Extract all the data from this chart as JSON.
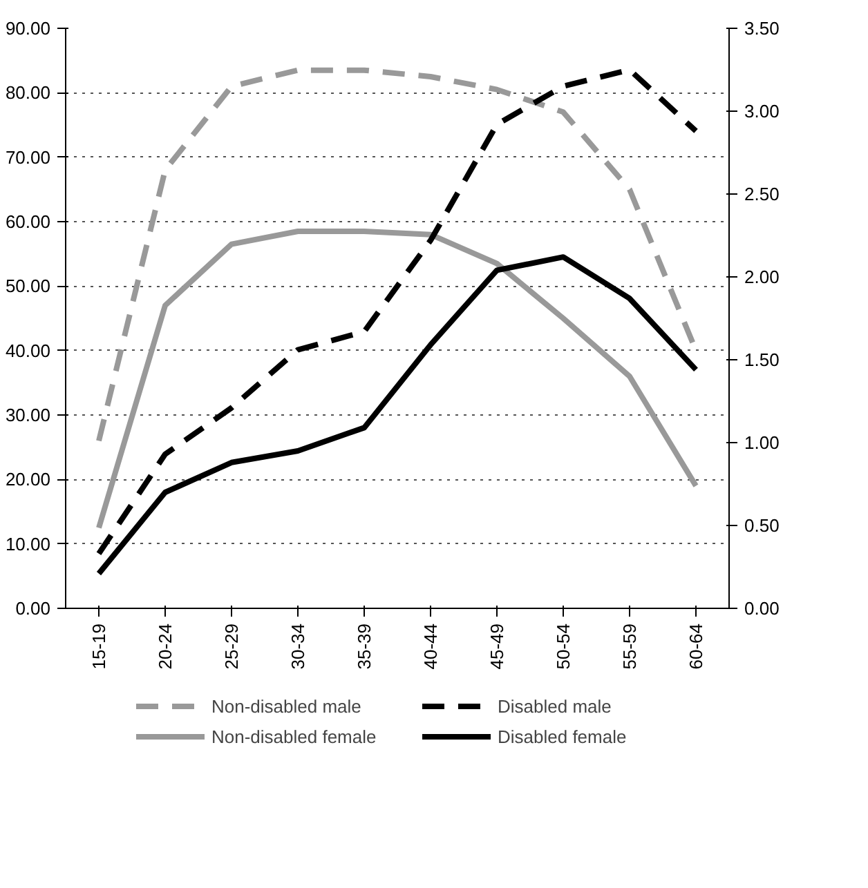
{
  "chart_data": {
    "type": "line",
    "categories": [
      "15-19",
      "20-24",
      "25-29",
      "30-34",
      "35-39",
      "40-44",
      "45-49",
      "50-54",
      "55-59",
      "60-64"
    ],
    "series": [
      {
        "name": "Non-disabled male",
        "color": "#999999",
        "line_style": "dashed",
        "values": [
          26,
          68,
          81,
          83.5,
          83.5,
          82.5,
          80.5,
          77,
          65,
          40
        ]
      },
      {
        "name": "Non-disabled female",
        "color": "#999999",
        "line_style": "solid",
        "values": [
          12.5,
          47,
          56.5,
          58.5,
          58.5,
          58,
          53.5,
          45,
          36,
          19
        ]
      },
      {
        "name": "Disabled male",
        "color": "#000000",
        "line_style": "dashed",
        "axis": "y2",
        "values": [
          0.33,
          0.93,
          1.21,
          1.56,
          1.67,
          2.22,
          2.92,
          3.15,
          3.25,
          2.88
        ]
      },
      {
        "name": "Disabled female",
        "color": "#000000",
        "line_style": "solid",
        "axis": "y2",
        "values": [
          0.21,
          0.7,
          0.88,
          0.95,
          1.09,
          1.59,
          2.04,
          2.12,
          1.87,
          1.44
        ]
      }
    ],
    "ylim": [
      0,
      90
    ],
    "yticks": [
      {
        "value": 0,
        "label": "0.00"
      },
      {
        "value": 10,
        "label": "10.00"
      },
      {
        "value": 20,
        "label": "20.00"
      },
      {
        "value": 30,
        "label": "30.00"
      },
      {
        "value": 40,
        "label": "40.00"
      },
      {
        "value": 50,
        "label": "50.00"
      },
      {
        "value": 60,
        "label": "60.00"
      },
      {
        "value": 70,
        "label": "70.00"
      },
      {
        "value": 80,
        "label": "80.00"
      },
      {
        "value": 90,
        "label": "90.00"
      }
    ],
    "y2lim": [
      0,
      3.5
    ],
    "y2ticks": [
      {
        "value": 0,
        "label": "0.00"
      },
      {
        "value": 0.5,
        "label": "0.50"
      },
      {
        "value": 1,
        "label": "1.00"
      },
      {
        "value": 1.5,
        "label": "1.50"
      },
      {
        "value": 2,
        "label": "2.00"
      },
      {
        "value": 2.5,
        "label": "2.50"
      },
      {
        "value": 3,
        "label": "3.00"
      },
      {
        "value": 3.5,
        "label": "3.50"
      }
    ],
    "grid": "y",
    "legend": "bottom",
    "marker": "none"
  }
}
